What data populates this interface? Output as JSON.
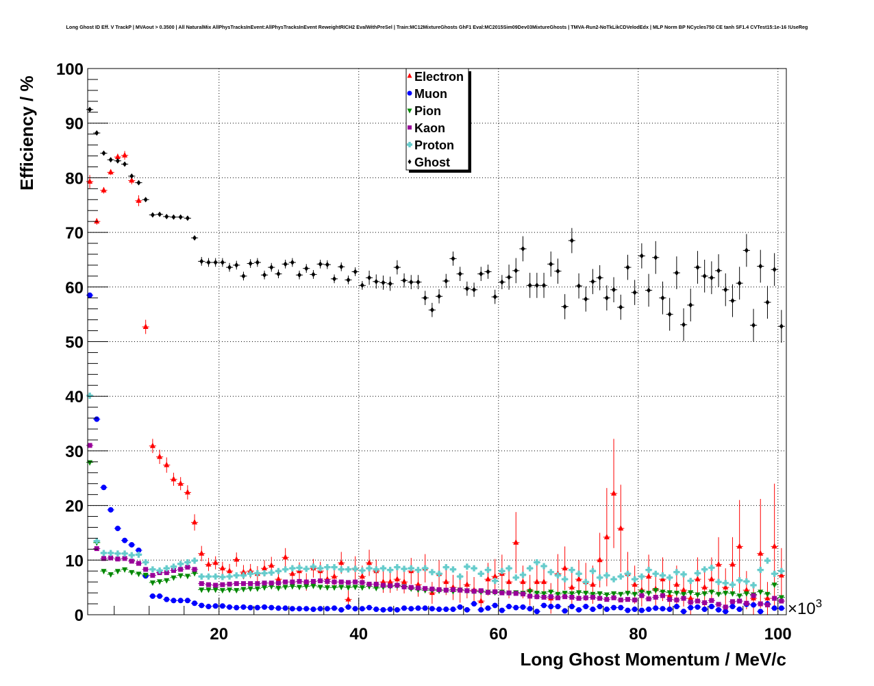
{
  "chart_data": {
    "type": "scatter",
    "title": "Long Ghost ID Eff. V TrackP | MVAout > 0.3500 | All NaturalMix AllPhysTracksInEvent:AllPhysTracksInEvent ReweightRICH2 EvalWithPreSel | Train:MC12MixtureGhosts GhF1 Eval:MC2015Sim09Dev03MixtureGhosts | TMVA-Run2-NoTkLikCDVelodEdx | MLP Norm BP NCycles750 CE tanh SF1.4 CVTest15:1e-16 !UseReg",
    "xlabel": "Long Ghost Momentum / MeV/c",
    "ylabel": "Efficiency / %",
    "x_multiplier_label": "×10",
    "x_multiplier_exp": "3",
    "xlim": [
      1.2,
      101.2
    ],
    "ylim": [
      0,
      100
    ],
    "x_ticks": [
      "20",
      "40",
      "60",
      "80",
      "100"
    ],
    "y_ticks": [
      "0",
      "10",
      "20",
      "30",
      "40",
      "50",
      "60",
      "70",
      "80",
      "90",
      "100"
    ],
    "grid": true,
    "legend_position": "top-center",
    "x_start": 1.5,
    "x_step": 1.0,
    "series": [
      {
        "name": "Electron",
        "color": "#ff0000",
        "marker": "triangle-up",
        "values": [
          79.3,
          72.0,
          77.7,
          81.0,
          83.8,
          84.1,
          79.5,
          75.8,
          52.7,
          30.9,
          28.9,
          27.4,
          24.8,
          24.0,
          22.4,
          16.9,
          11.2,
          9.2,
          9.5,
          8.5,
          8.0,
          10.1,
          7.8,
          8.0,
          7.5,
          8.5,
          9.0,
          6.5,
          10.5,
          7.5,
          8.0,
          6.0,
          8.5,
          8.0,
          6.5,
          7.0,
          9.5,
          2.8,
          8.5,
          7.0,
          9.5,
          8.0,
          6.0,
          6.0,
          6.5,
          6.0,
          8.0,
          5.5,
          8.5,
          4.0,
          7.5,
          6.0,
          5.0,
          4.5,
          5.5,
          4.5,
          2.5,
          6.5,
          7.0,
          7.5,
          6.0,
          13.2,
          6.0,
          4.5,
          6.0,
          6.0,
          3.0,
          7.5,
          8.5,
          5.0,
          6.5,
          6.0,
          5.5,
          10.0,
          14.2,
          22.2,
          15.8,
          7.5,
          5.5,
          4.5,
          7.0,
          4.7,
          6.5,
          3.5,
          5.5,
          4.5,
          3.0,
          6.5,
          5.0,
          6.5,
          9.2,
          5.0,
          9.2,
          12.5,
          4.5,
          3.0,
          11.2,
          3.0,
          12.5,
          7.2
        ],
        "yerr": [
          1.2,
          0.6,
          0.6,
          0.5,
          0.6,
          0.8,
          0.7,
          1.0,
          1.3,
          1.3,
          1.3,
          1.4,
          1.2,
          1.2,
          1.3,
          1.5,
          1.4,
          1.2,
          1.2,
          1.2,
          1.3,
          1.3,
          1.3,
          1.3,
          1.4,
          1.5,
          1.6,
          1.5,
          1.7,
          1.6,
          1.6,
          1.6,
          1.7,
          1.7,
          1.7,
          1.8,
          2.0,
          1.8,
          2.2,
          2.0,
          2.4,
          2.1,
          2.0,
          2.0,
          2.1,
          2.1,
          2.4,
          2.2,
          2.6,
          2.0,
          2.5,
          2.4,
          2.3,
          2.3,
          2.5,
          2.4,
          2.0,
          3.0,
          3.2,
          3.5,
          3.0,
          5.6,
          3.0,
          2.8,
          3.2,
          3.2,
          2.8,
          3.6,
          4.0,
          3.0,
          3.5,
          3.5,
          3.5,
          5.0,
          9.0,
          10.0,
          8.0,
          4.0,
          3.5,
          3.0,
          4.0,
          3.0,
          4.0,
          3.0,
          3.5,
          3.0,
          3.0,
          4.0,
          3.5,
          4.0,
          5.0,
          3.5,
          5.0,
          8.5,
          3.5,
          3.0,
          10.0,
          3.0,
          11.5,
          5.0
        ]
      },
      {
        "name": "Muon",
        "color": "#0000ff",
        "marker": "circle",
        "values": [
          58.5,
          35.8,
          23.3,
          19.2,
          15.8,
          13.6,
          12.8,
          11.8,
          7.1,
          3.4,
          3.4,
          2.8,
          2.6,
          2.6,
          2.6,
          2.1,
          1.7,
          1.5,
          1.6,
          1.6,
          1.4,
          1.3,
          1.4,
          1.3,
          1.3,
          1.4,
          1.3,
          1.2,
          1.2,
          1.1,
          1.1,
          1.1,
          1.0,
          1.1,
          1.1,
          1.2,
          0.9,
          1.4,
          1.1,
          1.1,
          1.3,
          1.0,
          0.9,
          1.0,
          0.9,
          1.2,
          1.1,
          1.2,
          1.2,
          1.1,
          1.0,
          1.0,
          1.0,
          1.4,
          0.9,
          2.0,
          0.9,
          1.2,
          1.7,
          0.8,
          1.5,
          1.3,
          1.4,
          1.1,
          0.6,
          1.7,
          1.5,
          1.5,
          0.7,
          1.5,
          0.9,
          1.5,
          1.0,
          1.5,
          1.0,
          1.3,
          1.3,
          0.8,
          1.0,
          0.8,
          1.0,
          1.2,
          1.1,
          1.0,
          1.5,
          0.6,
          1.3,
          1.4,
          1.0,
          1.5,
          0.9,
          0.6,
          1.5,
          1.0,
          1.9,
          1.8,
          0.6,
          2.0,
          1.2,
          1.2
        ],
        "yerr": 0.3
      },
      {
        "name": "Pion",
        "color": "#008800",
        "marker": "triangle-down",
        "values": [
          27.9,
          13.2,
          8.0,
          7.4,
          8.0,
          8.3,
          7.8,
          7.5,
          7.3,
          5.9,
          6.1,
          6.3,
          6.8,
          7.2,
          7.1,
          7.6,
          4.6,
          4.6,
          4.6,
          4.5,
          4.6,
          4.5,
          4.7,
          4.8,
          4.8,
          5.0,
          5.2,
          4.9,
          5.1,
          5.2,
          5.1,
          5.2,
          5.3,
          5.1,
          5.0,
          5.0,
          5.1,
          5.0,
          5.1,
          5.0,
          5.2,
          4.9,
          5.1,
          5.2,
          5.3,
          5.2,
          4.8,
          4.6,
          4.5,
          4.5,
          4.4,
          4.5,
          4.3,
          4.6,
          4.4,
          4.3,
          4.2,
          4.2,
          4.1,
          4.2,
          4.0,
          4.1,
          4.0,
          4.3,
          4.0,
          3.9,
          4.2,
          3.8,
          4.0,
          3.9,
          4.1,
          4.0,
          3.8,
          3.9,
          3.7,
          3.9,
          3.8,
          4.0,
          3.8,
          4.2,
          4.0,
          4.5,
          4.2,
          4.1,
          4.0,
          3.8,
          4.1,
          3.7,
          3.9,
          4.2,
          3.8,
          4.0,
          3.9,
          3.5,
          3.9,
          3.7,
          4.2,
          3.8,
          5.5,
          3.2,
          3.0
        ],
        "yerr": 0.3
      },
      {
        "name": "Kaon",
        "color": "#990099",
        "marker": "square",
        "values": [
          31.0,
          12.1,
          10.3,
          10.4,
          10.2,
          10.3,
          9.8,
          9.4,
          8.3,
          7.2,
          7.7,
          7.7,
          8.1,
          8.3,
          8.7,
          8.3,
          5.7,
          5.5,
          5.4,
          5.5,
          5.6,
          5.7,
          5.7,
          5.7,
          5.7,
          5.8,
          5.8,
          5.8,
          6.0,
          6.0,
          6.1,
          6.0,
          6.1,
          6.2,
          6.1,
          6.0,
          6.0,
          5.9,
          6.0,
          5.9,
          5.6,
          5.6,
          5.4,
          5.3,
          5.4,
          5.1,
          5.0,
          4.9,
          4.8,
          4.7,
          4.6,
          4.5,
          4.6,
          4.5,
          4.4,
          4.3,
          4.4,
          4.1,
          4.2,
          4.0,
          4.0,
          3.9,
          3.8,
          3.4,
          3.3,
          3.2,
          3.3,
          3.1,
          3.3,
          3.2,
          3.0,
          3.1,
          3.2,
          3.0,
          2.8,
          3.1,
          2.7,
          2.8,
          2.7,
          3.5,
          2.9,
          3.2,
          3.5,
          2.8,
          2.7,
          3.0,
          2.3,
          2.5,
          2.2,
          2.6,
          1.9,
          1.4,
          2.4,
          2.5,
          2.1,
          3.5,
          2.0,
          1.8,
          3.0,
          2.5
        ],
        "yerr": 0.3
      },
      {
        "name": "Proton",
        "color": "#66cccc",
        "marker": "cross",
        "values": [
          40.1,
          13.5,
          11.3,
          11.3,
          11.2,
          11.2,
          10.9,
          11.0,
          9.6,
          8.3,
          8.1,
          8.5,
          8.8,
          9.3,
          9.6,
          9.9,
          7.0,
          7.0,
          7.0,
          6.9,
          7.0,
          7.2,
          7.2,
          7.5,
          7.6,
          7.6,
          7.7,
          8.0,
          8.3,
          8.5,
          8.6,
          8.4,
          8.8,
          8.5,
          8.7,
          8.7,
          8.3,
          8.3,
          8.4,
          8.1,
          8.5,
          8.3,
          8.5,
          8.2,
          8.7,
          8.4,
          8.5,
          8.2,
          8.5,
          7.8,
          7.5,
          8.7,
          8.3,
          7.0,
          8.8,
          8.5,
          7.5,
          8.2,
          6.2,
          8.0,
          8.5,
          6.8,
          7.3,
          8.5,
          9.6,
          8.9,
          7.8,
          7.2,
          6.5,
          8.2,
          7.5,
          6.0,
          8.0,
          6.8,
          7.2,
          6.5,
          7.0,
          7.5,
          6.5,
          7.0,
          8.2,
          7.5,
          7.2,
          6.8,
          7.8,
          7.4,
          6.2,
          7.6,
          8.3,
          8.6,
          6.0,
          5.8,
          5.5,
          6.3,
          6.1,
          5.4,
          8.2,
          9.9,
          7.5,
          8.0
        ],
        "yerr": 0.4
      },
      {
        "name": "Ghost",
        "color": "#000000",
        "marker": "diamond",
        "values": [
          92.5,
          88.2,
          84.5,
          83.3,
          83.1,
          82.5,
          80.3,
          79.1,
          76.0,
          73.2,
          73.3,
          72.9,
          72.8,
          72.8,
          72.6,
          69.0,
          64.7,
          64.5,
          64.5,
          64.5,
          63.6,
          64.0,
          62.0,
          64.3,
          64.5,
          62.2,
          63.6,
          62.4,
          64.2,
          64.5,
          62.2,
          63.4,
          62.3,
          64.2,
          64.1,
          61.5,
          63.7,
          61.3,
          62.8,
          60.3,
          61.7,
          61.0,
          60.8,
          60.6,
          63.6,
          61.2,
          60.9,
          60.9,
          58.0,
          55.8,
          58.3,
          61.1,
          65.2,
          62.4,
          59.7,
          59.5,
          62.4,
          62.8,
          58.2,
          60.9,
          61.8,
          63.0,
          67.0,
          60.3,
          60.3,
          60.3,
          64.2,
          62.9,
          56.4,
          68.5,
          60.2,
          57.8,
          61.0,
          61.7,
          58.0,
          59.5,
          56.3,
          63.6,
          59.0,
          65.7,
          59.4,
          65.4,
          58.0,
          55.0,
          62.6,
          53.1,
          56.7,
          63.6,
          62.0,
          61.7,
          63.0,
          59.5,
          57.5,
          60.7,
          66.7,
          53.0,
          63.8,
          57.2,
          63.2,
          52.8
        ],
        "yerr": [
          0.4,
          0.4,
          0.4,
          0.4,
          0.4,
          0.4,
          0.4,
          0.4,
          0.4,
          0.4,
          0.4,
          0.4,
          0.4,
          0.4,
          0.4,
          0.4,
          0.8,
          0.8,
          0.8,
          0.8,
          0.8,
          0.8,
          0.8,
          0.8,
          0.8,
          0.8,
          0.8,
          0.8,
          0.8,
          0.8,
          0.8,
          0.8,
          0.8,
          0.8,
          0.8,
          0.8,
          0.8,
          0.8,
          0.8,
          0.8,
          1.3,
          1.3,
          1.3,
          1.3,
          1.3,
          1.3,
          1.3,
          1.3,
          1.3,
          1.3,
          1.3,
          1.3,
          1.3,
          1.3,
          1.3,
          1.3,
          1.3,
          1.3,
          1.3,
          1.3,
          2.3,
          2.3,
          2.3,
          2.3,
          2.3,
          2.3,
          2.3,
          2.3,
          2.3,
          2.3,
          2.3,
          2.3,
          2.3,
          2.3,
          2.3,
          2.3,
          2.3,
          2.3,
          2.3,
          2.3,
          3.0,
          3.0,
          3.0,
          3.0,
          3.0,
          3.0,
          3.0,
          3.0,
          3.0,
          3.0,
          3.0,
          3.0,
          3.0,
          3.0,
          3.0,
          3.0,
          3.0,
          3.0,
          3.0,
          3.0
        ]
      }
    ]
  }
}
